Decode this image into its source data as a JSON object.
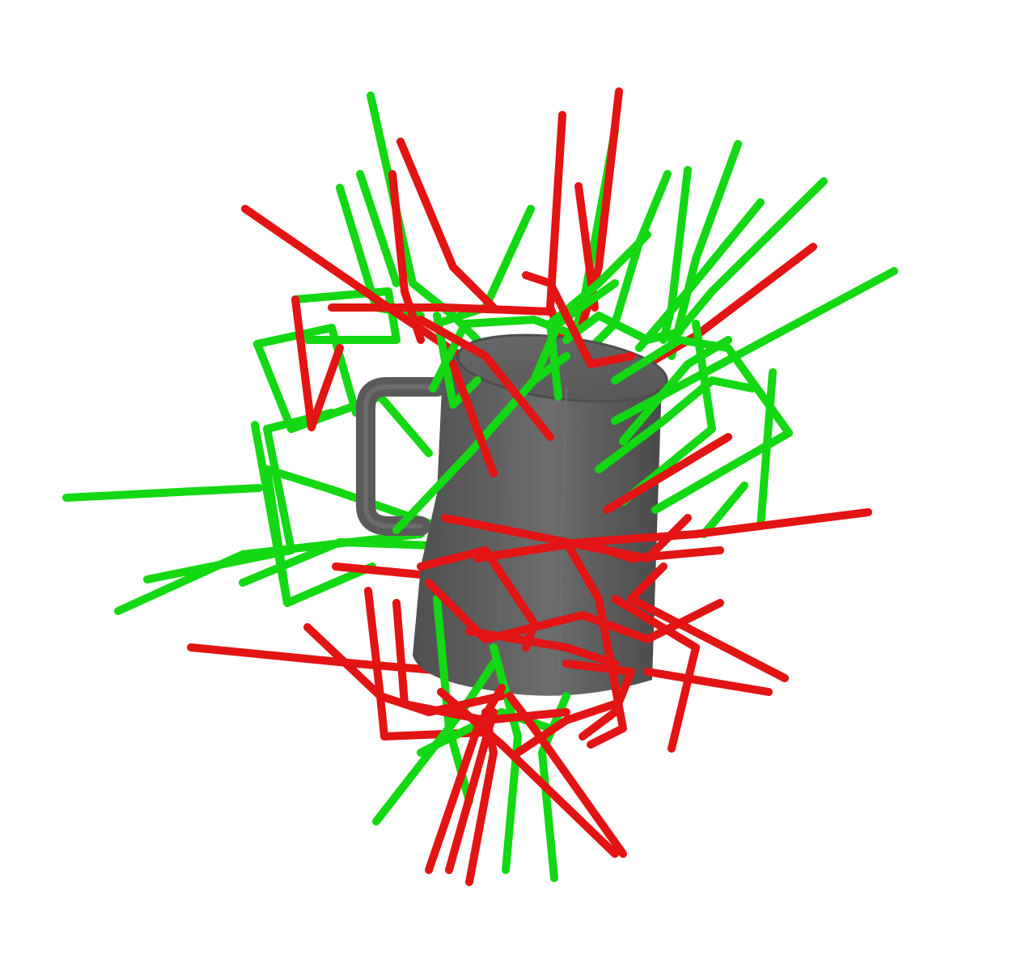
{
  "scene": {
    "object": "mug-icon",
    "colors": {
      "background": "#ffffff",
      "mug_body": "#5c5c5c",
      "mug_shadow": "#474747",
      "mug_highlight": "#737373",
      "mug_outline": "#4e4e4e",
      "grasp_success": "#13d813",
      "grasp_failure": "#e21414"
    },
    "legend_text": []
  }
}
